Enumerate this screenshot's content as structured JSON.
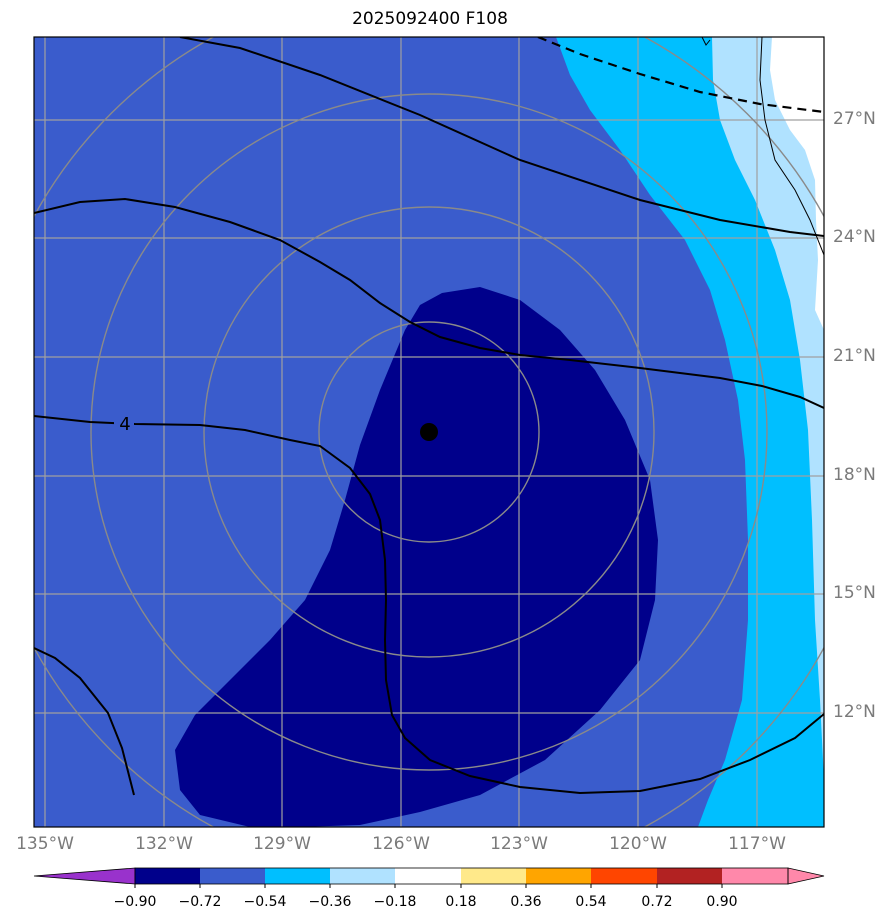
{
  "title": "2025092400 F108",
  "lat_labels": [
    "27°N",
    "24°N",
    "21°N",
    "18°N",
    "15°N",
    "12°N"
  ],
  "lon_labels": [
    "135°W",
    "132°W",
    "129°W",
    "126°W",
    "123°W",
    "120°W",
    "117°W"
  ],
  "contour_label": "4",
  "colorbar": {
    "ticks": [
      "−0.90",
      "−0.72",
      "−0.54",
      "−0.36",
      "−0.18",
      "0.18",
      "0.36",
      "0.54",
      "0.72",
      "0.90"
    ],
    "colors": {
      "under": "#9932cc",
      "c1": "#00008b",
      "c2": "#3a5ccc",
      "c3": "#00bfff",
      "c4": "#b0e2ff",
      "c5": "#ffffff",
      "c6": "#ffe98a",
      "c7": "#ffa500",
      "c8": "#ff4500",
      "c9": "#b22222",
      "over": "#ff88aa"
    }
  },
  "colors": {
    "deep_blue": "#00008b",
    "royal_blue": "#3a5ccc",
    "sky_blue": "#00bfff",
    "pale_blue": "#b0e2ff",
    "grid": "#a0a0a0",
    "range_rings": "#8a8a8a"
  }
}
